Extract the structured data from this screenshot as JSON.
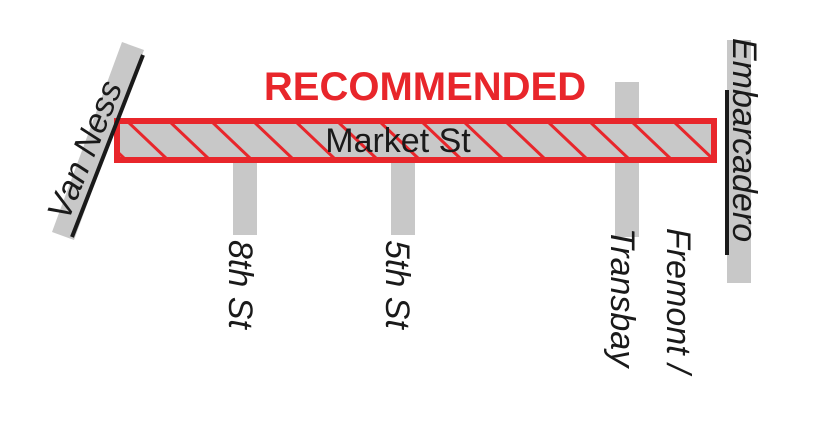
{
  "title": "RECOMMENDED",
  "main_street": "Market St",
  "streets": {
    "van_ness": "Van Ness",
    "eighth": "8th St",
    "fifth": "5th St",
    "transbay": "Transbay",
    "fremont": "Fremont /",
    "embarcadero": "Embarcadero"
  },
  "colors": {
    "recommended": "#e8262b",
    "street": "#c8c8c8",
    "text": "#1a1a1a"
  }
}
